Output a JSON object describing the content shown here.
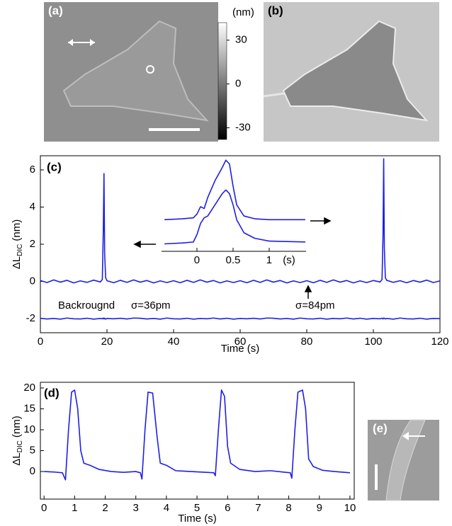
{
  "images": [
    {
      "label": "(a)"
    },
    {
      "label": "(b)"
    },
    {
      "label": "(e)"
    }
  ],
  "chart_data": [
    {
      "type": "colorbar",
      "title": "(nm)",
      "ylim": [
        -38,
        42
      ],
      "yticks": [
        30,
        0,
        -30
      ]
    },
    {
      "type": "line",
      "label": "(c)",
      "xlabel": "Time  (s)",
      "ylabel": {
        "main": "ΔL",
        "sub": "DIC",
        "unit": "(nm)"
      },
      "xlim": [
        0,
        120
      ],
      "xticks": [
        0,
        20,
        40,
        60,
        80,
        100,
        120
      ],
      "ylim": [
        -2.76,
        6.76
      ],
      "yticks": [
        -2,
        0,
        2,
        4,
        6
      ],
      "annotations": [
        "Backrougnd",
        "σ=36pm",
        "σ=84pm"
      ],
      "x": [
        0,
        2,
        4,
        6,
        8,
        10,
        12,
        14,
        16,
        18,
        18.6,
        18.9,
        19.1,
        19.3,
        19.6,
        20,
        22,
        24,
        26,
        28,
        30,
        32,
        34,
        36,
        38,
        40,
        42,
        44,
        46,
        48,
        50,
        52,
        54,
        56,
        58,
        60,
        62,
        64,
        66,
        68,
        70,
        72,
        74,
        76,
        78,
        80,
        82,
        84,
        86,
        88,
        90,
        92,
        94,
        96,
        98,
        100,
        102,
        102.6,
        102.9,
        103.1,
        103.3,
        103.6,
        104,
        106,
        108,
        110,
        112,
        114,
        116,
        118,
        120
      ],
      "series": [
        {
          "color": "#1f1fe6",
          "values": [
            0.05,
            -0.06,
            0.08,
            -0.04,
            0.06,
            -0.08,
            0.03,
            -0.05,
            0.07,
            -0.03,
            0.1,
            2.8,
            5.8,
            1.5,
            0.2,
            0.04,
            -0.07,
            0.06,
            -0.05,
            0.08,
            -0.04,
            0.05,
            -0.08,
            0.03,
            -0.06,
            0.04,
            -0.07,
            0.06,
            -0.05,
            0.08,
            -0.04,
            0.05,
            -0.08,
            0.03,
            -0.06,
            0.04,
            -0.07,
            0.06,
            -0.05,
            0.08,
            -0.04,
            0.05,
            -0.08,
            0.03,
            -0.06,
            0.04,
            -0.07,
            0.06,
            -0.05,
            0.08,
            -0.04,
            0.05,
            -0.08,
            0.03,
            -0.06,
            0.05,
            -0.03,
            0.1,
            2.5,
            6.6,
            1.8,
            0.2,
            0.06,
            -0.05,
            0.04,
            -0.07,
            0.05,
            -0.04,
            0.07,
            -0.06,
            0.03
          ]
        },
        {
          "color": "#1f1fe6",
          "values": [
            -1.98,
            -2.02,
            -1.99,
            -2.03,
            -1.97,
            -2.01,
            -2.02,
            -1.98,
            -2.03,
            -1.99,
            -2.01,
            -1.97,
            -2.02,
            -1.98,
            -2.03,
            -1.99,
            -2.01,
            -1.98,
            -2.02,
            -1.97,
            -1.98,
            -2.02,
            -1.99,
            -2.03,
            -1.97,
            -2.01,
            -2.02,
            -1.98,
            -2.03,
            -1.99,
            -2.01,
            -1.97,
            -2.02,
            -1.98,
            -2.03,
            -1.99,
            -2.01,
            -1.98,
            -2.02,
            -1.97,
            -1.98,
            -2.02,
            -1.99,
            -2.03,
            -1.97,
            -2.01,
            -2.02,
            -1.98,
            -2.03,
            -1.99,
            -2.01,
            -1.97,
            -2.02,
            -1.98,
            -2.03,
            -1.99,
            -2.01,
            -1.98,
            -2.02,
            -1.97,
            -1.98,
            -2.02,
            -1.99,
            -2.03,
            -1.97,
            -2.01,
            -2.02,
            -1.98,
            -2.03,
            -1.99,
            -2.0
          ]
        }
      ]
    },
    {
      "type": "line",
      "xlabel": "(s)",
      "xlim": [
        -0.49,
        1.51
      ],
      "xticks": [
        0,
        0.5,
        1
      ],
      "ylim": [
        1.5,
        6.6
      ],
      "x": [
        -0.45,
        -0.2,
        -0.05,
        0,
        0.05,
        0.1,
        0.15,
        0.25,
        0.35,
        0.4,
        0.45,
        0.5,
        0.55,
        0.65,
        0.8,
        1.0,
        1.5
      ],
      "series": [
        {
          "color": "#1f1fe6",
          "values": [
            3.2,
            3.25,
            3.3,
            3.5,
            3.9,
            3.8,
            4.4,
            5.3,
            6.0,
            6.4,
            6.2,
            5.0,
            4.0,
            3.4,
            3.25,
            3.2,
            3.2
          ]
        },
        {
          "color": "#1f1fe6",
          "values": [
            1.9,
            1.95,
            2.0,
            2.4,
            3.0,
            3.3,
            3.4,
            4.0,
            4.6,
            4.8,
            4.6,
            4.0,
            3.2,
            2.5,
            2.2,
            2.05,
            2.0
          ]
        }
      ]
    },
    {
      "type": "line",
      "label": "(d)",
      "xlabel": "Time  (s)",
      "ylabel": {
        "main": "ΔL",
        "sub": "DIC",
        "unit": "(nm)"
      },
      "xlim": [
        -0.12,
        10.14
      ],
      "xticks": [
        0,
        1,
        2,
        3,
        4,
        5,
        6,
        7,
        8,
        9,
        10
      ],
      "ylim": [
        -6.6,
        21.36
      ],
      "yticks": [
        0,
        5,
        10,
        15,
        20
      ],
      "x": [
        0,
        0.3,
        0.6,
        0.7,
        0.8,
        0.9,
        1.0,
        1.1,
        1.2,
        1.3,
        1.5,
        1.8,
        2.2,
        2.6,
        3.0,
        3.15,
        3.2,
        3.3,
        3.4,
        3.55,
        3.7,
        3.8,
        4.0,
        4.3,
        4.8,
        5.3,
        5.55,
        5.6,
        5.7,
        5.8,
        5.9,
        6.0,
        6.1,
        6.4,
        6.9,
        7.4,
        7.9,
        8.05,
        8.1,
        8.2,
        8.3,
        8.45,
        8.55,
        8.65,
        8.8,
        9.1,
        9.5,
        10
      ],
      "series": [
        {
          "color": "#1f1fe6",
          "values": [
            0,
            -0.1,
            -0.3,
            -2,
            10,
            19,
            19.5,
            15,
            5,
            2,
            1.5,
            0.5,
            0,
            -0.2,
            0,
            -0.3,
            -1.8,
            10,
            19,
            18.8,
            8,
            2,
            1.5,
            0.2,
            0,
            -0.2,
            -0.3,
            -1.0,
            10,
            19.5,
            18,
            6,
            2,
            0.5,
            0,
            0.2,
            -0.2,
            -0.3,
            -1.6,
            10,
            19,
            19.5,
            15,
            3,
            1.2,
            0.3,
            0,
            -0.3
          ]
        }
      ]
    }
  ]
}
